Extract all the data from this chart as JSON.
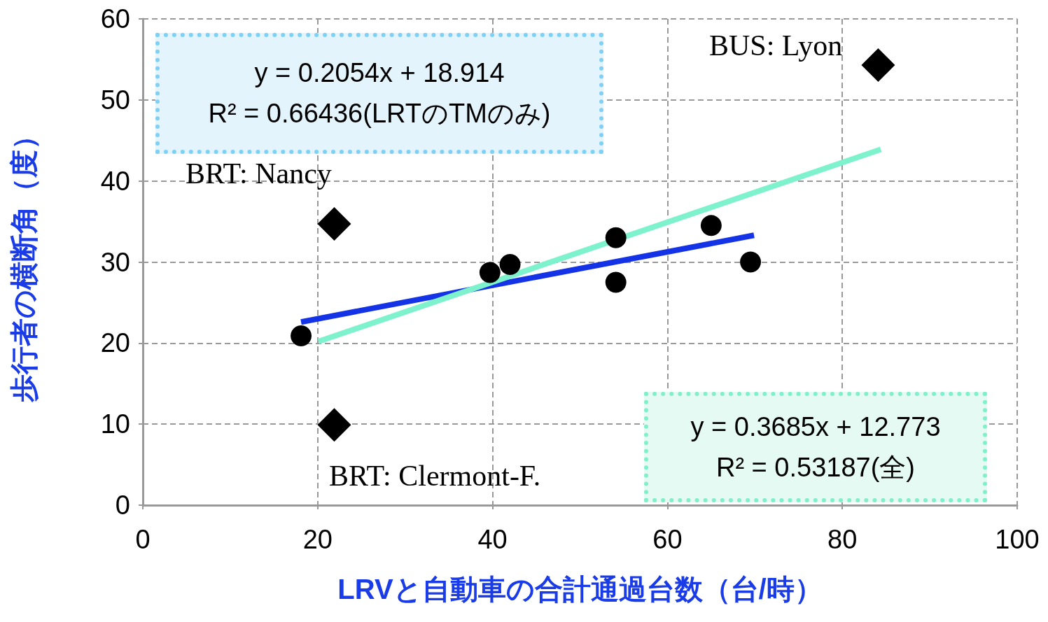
{
  "chart_data": {
    "type": "scatter",
    "xlabel": "LRVと自動車の合計通過台数（台/時）",
    "ylabel": "歩行者の横断角（度）",
    "xlim": [
      0,
      100
    ],
    "xticks": [
      0,
      20,
      40,
      60,
      80,
      100
    ],
    "ylim": [
      0,
      60
    ],
    "yticks": [
      0,
      10,
      20,
      30,
      40,
      50,
      60
    ],
    "grid": true,
    "series": [
      {
        "marker": "circle",
        "color": "#000000",
        "x": [
          18.1,
          39.7,
          42,
          54.1,
          54.1,
          65,
          69.5
        ],
        "values": [
          20.9,
          28.7,
          29.7,
          33,
          27.5,
          34.5,
          30
        ]
      },
      {
        "marker": "diamond",
        "color": "#000000",
        "x": [
          21.9,
          21.9,
          84.1
        ],
        "values": [
          34.7,
          9.9,
          54.3
        ]
      },
      {
        "type": "line",
        "marker": "none",
        "line_style": "solid",
        "color": "#1433e6",
        "x": [
          18.1,
          69.9
        ],
        "values": [
          22.6,
          33.3
        ]
      },
      {
        "type": "line",
        "marker": "none",
        "line_style": "solid",
        "color": "#7df2cc",
        "x": [
          20.1,
          84.4
        ],
        "values": [
          20.2,
          43.9
        ]
      }
    ],
    "annotations": [
      "BUS: Lyon",
      "BRT: Nancy",
      "BRT: Clermont-F.",
      "y = 0.2054x + 18.914\nR² = 0.66436(LRTのTMのみ)",
      "y = 0.3685x + 12.773\nR² = 0.53187(全)"
    ]
  }
}
